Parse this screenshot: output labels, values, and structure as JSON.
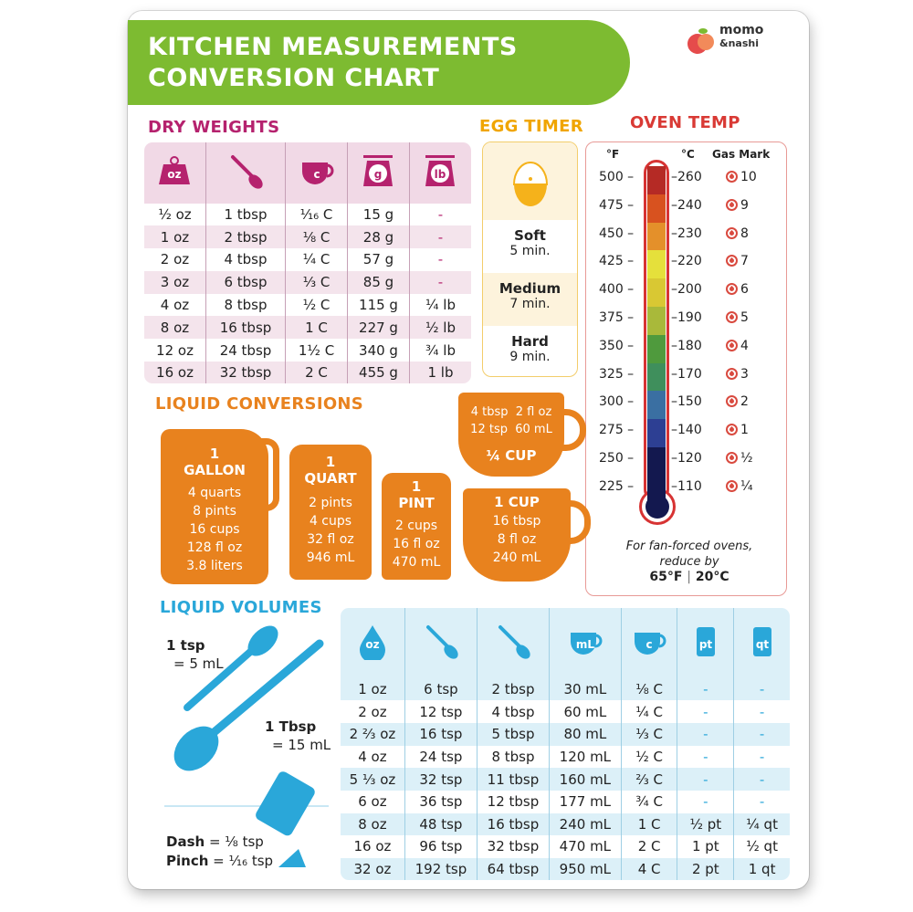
{
  "title": {
    "line1": "KITCHEN MEASUREMENTS",
    "line2": "CONVERSION CHART"
  },
  "logo": {
    "text1": "momo",
    "text2": "&nashi"
  },
  "colors": {
    "green": "#7dbb31",
    "magenta": "#b5226e",
    "egg": "#f0a500",
    "oven": "#d93a35",
    "orange": "#e8821e",
    "blue": "#2aa7d9"
  },
  "dry_weights": {
    "heading": "DRY WEIGHTS",
    "header_icons": [
      {
        "icon": "weight-icon",
        "label": "oz"
      },
      {
        "icon": "spoon-icon",
        "label": ""
      },
      {
        "icon": "cup-icon",
        "label": "c"
      },
      {
        "icon": "scale-icon",
        "label": "g"
      },
      {
        "icon": "scale-icon",
        "label": "lb"
      }
    ],
    "rows": [
      [
        "½ oz",
        "1 tbsp",
        "¹⁄₁₆ C",
        "15 g",
        "-"
      ],
      [
        "1 oz",
        "2 tbsp",
        "⅛ C",
        "28 g",
        "-"
      ],
      [
        "2 oz",
        "4 tbsp",
        "¼ C",
        "57 g",
        "-"
      ],
      [
        "3 oz",
        "6 tbsp",
        "⅓ C",
        "85 g",
        "-"
      ],
      [
        "4 oz",
        "8 tbsp",
        "½ C",
        "115 g",
        "¼ lb"
      ],
      [
        "8 oz",
        "16 tbsp",
        "1 C",
        "227 g",
        "½ lb"
      ],
      [
        "12 oz",
        "24 tbsp",
        "1½ C",
        "340 g",
        "¾ lb"
      ],
      [
        "16 oz",
        "32 tbsp",
        "2 C",
        "455 g",
        "1 lb"
      ]
    ]
  },
  "egg_timer": {
    "heading": "EGG TIMER",
    "icon": "egg-timer-icon",
    "stages": [
      {
        "name": "Soft",
        "time": "5 min."
      },
      {
        "name": "Medium",
        "time": "7 min."
      },
      {
        "name": "Hard",
        "time": "9 min."
      }
    ]
  },
  "oven_temp": {
    "heading": "OVEN TEMP",
    "col_f": "°F",
    "col_c": "°C",
    "col_gas": "Gas Mark",
    "rows": [
      [
        "500",
        "260",
        "10"
      ],
      [
        "475",
        "240",
        "9"
      ],
      [
        "450",
        "230",
        "8"
      ],
      [
        "425",
        "220",
        "7"
      ],
      [
        "400",
        "200",
        "6"
      ],
      [
        "375",
        "190",
        "5"
      ],
      [
        "350",
        "180",
        "4"
      ],
      [
        "325",
        "170",
        "3"
      ],
      [
        "300",
        "150",
        "2"
      ],
      [
        "275",
        "140",
        "1"
      ],
      [
        "250",
        "120",
        "½"
      ],
      [
        "225",
        "110",
        "¼"
      ]
    ],
    "scale_colors": [
      "#b52a25",
      "#d8521f",
      "#e4902a",
      "#e5e03b",
      "#d9c833",
      "#a9b93a",
      "#4f9a3d",
      "#3f8f5c",
      "#3a6fa2",
      "#2d3f93",
      "#13184f",
      "#13184f"
    ],
    "note_line1": "For fan-forced ovens,",
    "note_line2": "reduce by",
    "note_f": "65°F",
    "note_sep": "|",
    "note_c": "20°C"
  },
  "liquid_conversions": {
    "heading": "LIQUID CONVERSIONS",
    "gallon": {
      "amount": "1",
      "unit": "GALLON",
      "lines": [
        "4 quarts",
        "8 pints",
        "16 cups",
        "128 fl oz",
        "3.8 liters"
      ]
    },
    "quart": {
      "amount": "1",
      "unit": "QUART",
      "lines": [
        "2 pints",
        "4 cups",
        "32 fl oz",
        "946 mL"
      ]
    },
    "pint": {
      "amount": "1",
      "unit": "PINT",
      "lines": [
        "2 cups",
        "16 fl oz",
        "470 mL"
      ]
    },
    "quarter_cup": {
      "unit": "¼ CUP",
      "lines": [
        "4 tbsp",
        "2 fl oz",
        "12 tsp",
        "60 mL"
      ]
    },
    "cup": {
      "unit": "1 CUP",
      "lines": [
        "16 tbsp",
        "8 fl oz",
        "240 mL"
      ]
    }
  },
  "liquid_volumes": {
    "heading": "LIQUID VOLUMES",
    "tsp_label": "1 tsp",
    "tsp_value": "= 5 mL",
    "tbsp_label": "1 Tbsp",
    "tbsp_value": "= 15 mL",
    "dash": "Dash",
    "dash_value": "= ⅛ tsp",
    "pinch": "Pinch",
    "pinch_value": "= ¹⁄₁₆ tsp",
    "header_icons": [
      {
        "icon": "drop-icon",
        "label": "oz"
      },
      {
        "icon": "teaspoon-icon",
        "label": ""
      },
      {
        "icon": "tablespoon-icon",
        "label": ""
      },
      {
        "icon": "mug-icon",
        "label": "mL"
      },
      {
        "icon": "cup-icon",
        "label": "c"
      },
      {
        "icon": "pint-carton-icon",
        "label": "pt"
      },
      {
        "icon": "quart-carton-icon",
        "label": "qt"
      }
    ],
    "rows": [
      [
        "1 oz",
        "6 tsp",
        "2 tbsp",
        "30 mL",
        "⅛ C",
        "-",
        "-"
      ],
      [
        "2 oz",
        "12 tsp",
        "4 tbsp",
        "60 mL",
        "¼ C",
        "-",
        "-"
      ],
      [
        "2 ⅔ oz",
        "16 tsp",
        "5 tbsp",
        "80 mL",
        "⅓ C",
        "-",
        "-"
      ],
      [
        "4 oz",
        "24 tsp",
        "8 tbsp",
        "120 mL",
        "½ C",
        "-",
        "-"
      ],
      [
        "5 ⅓ oz",
        "32 tsp",
        "11 tbsp",
        "160 mL",
        "⅔ C",
        "-",
        "-"
      ],
      [
        "6 oz",
        "36 tsp",
        "12 tbsp",
        "177 mL",
        "¾ C",
        "-",
        "-"
      ],
      [
        "8 oz",
        "48 tsp",
        "16 tbsp",
        "240 mL",
        "1 C",
        "½ pt",
        "¼ qt"
      ],
      [
        "16 oz",
        "96 tsp",
        "32 tbsp",
        "470 mL",
        "2 C",
        "1 pt",
        "½ qt"
      ],
      [
        "32 oz",
        "192 tsp",
        "64 tbsp",
        "950 mL",
        "4 C",
        "2 pt",
        "1 qt"
      ]
    ]
  }
}
